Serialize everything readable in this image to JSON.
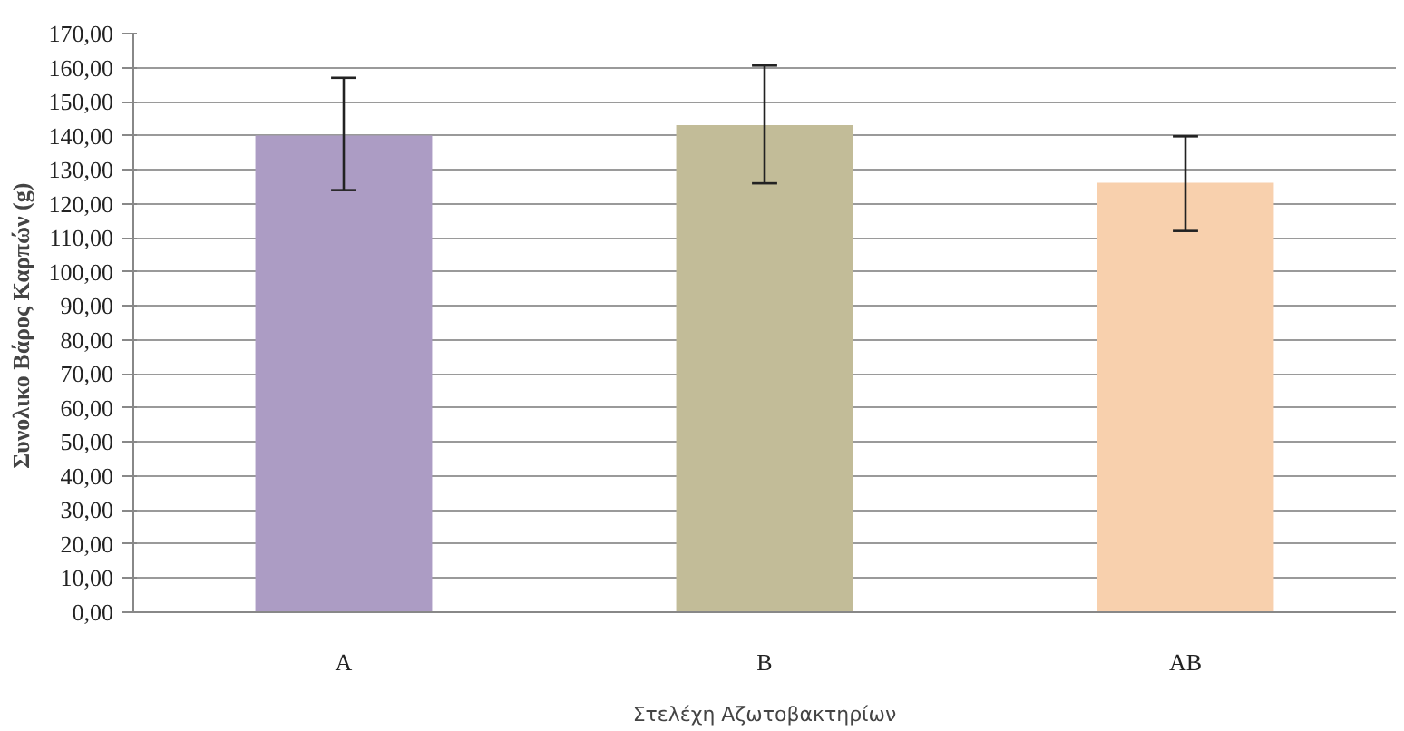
{
  "chart_data": {
    "type": "bar",
    "xlabel": "Στελέχη Αζωτοβακτηρίων",
    "ylabel": "Συνολικο Βάρος Καρπών  (g)",
    "categories": [
      "A",
      "B",
      "AB"
    ],
    "values": [
      140,
      143.1,
      126.2
    ],
    "colors": [
      "#ac9cc4",
      "#c2bc98",
      "#f8d0ad"
    ],
    "errors": [
      [
        124,
        157
      ],
      [
        126,
        160.6
      ],
      [
        112,
        139.8
      ]
    ],
    "ylim": [
      0,
      170
    ],
    "yticks": [
      {
        "value": 0,
        "label": "0,00"
      },
      {
        "value": 10,
        "label": "10,00"
      },
      {
        "value": 20,
        "label": "20,00"
      },
      {
        "value": 30,
        "label": "30,00"
      },
      {
        "value": 40,
        "label": "40,00"
      },
      {
        "value": 50,
        "label": "50,00"
      },
      {
        "value": 60,
        "label": "60,00"
      },
      {
        "value": 70,
        "label": "70,00"
      },
      {
        "value": 80,
        "label": "80,00"
      },
      {
        "value": 90,
        "label": "90,00"
      },
      {
        "value": 100,
        "label": "100,00"
      },
      {
        "value": 110,
        "label": "110,00"
      },
      {
        "value": 120,
        "label": "120,00"
      },
      {
        "value": 130,
        "label": "130,00"
      },
      {
        "value": 140,
        "label": "140,00"
      },
      {
        "value": 150,
        "label": "150,00"
      },
      {
        "value": 160,
        "label": "160,00"
      },
      {
        "value": 170,
        "label": "170,00"
      }
    ],
    "grid": "y"
  }
}
